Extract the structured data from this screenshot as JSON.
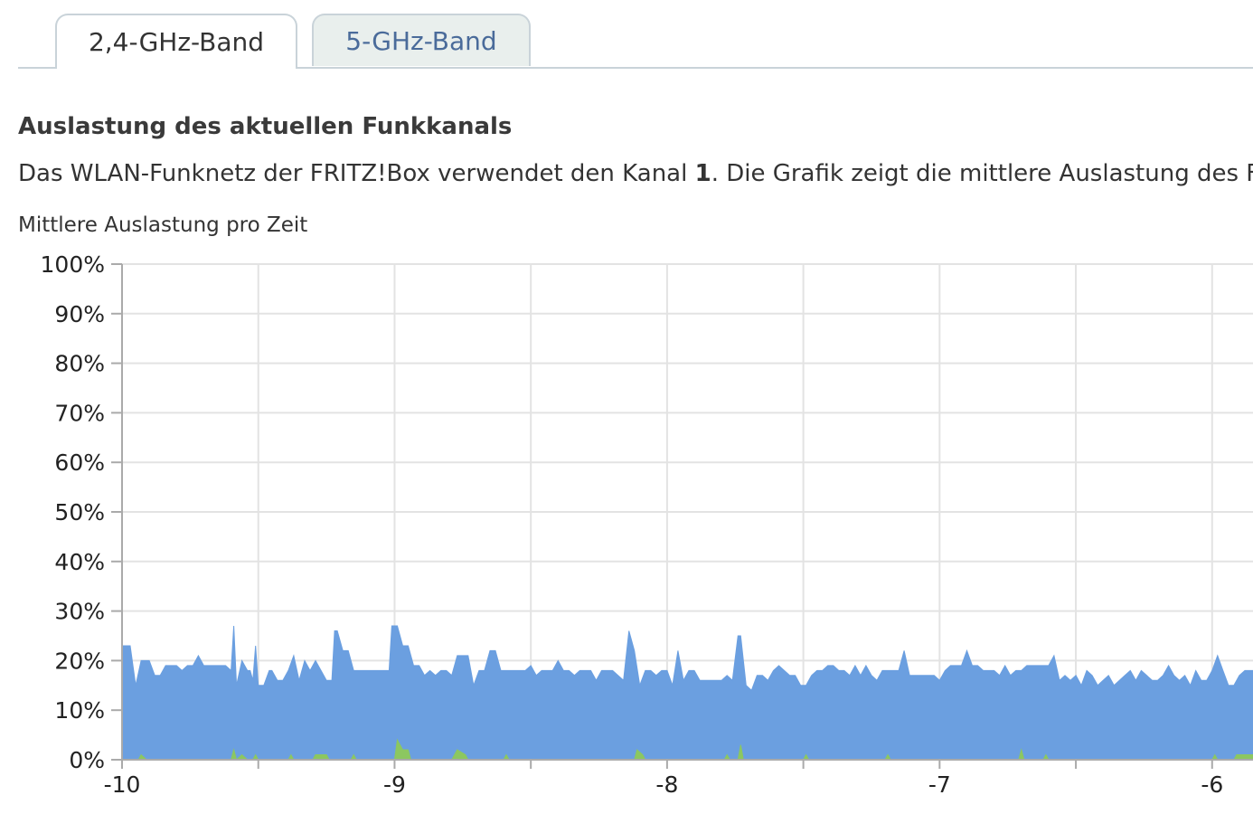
{
  "tabs": [
    {
      "label": "2,4-GHz-Band",
      "active": true
    },
    {
      "label": "5-GHz-Band",
      "active": false
    }
  ],
  "section": {
    "title": "Auslastung des aktuellen Funkkanals",
    "desc_prefix": "Das WLAN-Funknetz der FRITZ!Box verwendet den Kanal ",
    "channel": "1",
    "desc_suffix": ". Die Grafik zeigt die mittlere Auslastung des F"
  },
  "colors": {
    "blue_series": "#6b9fe0",
    "green_series": "#8cc760",
    "grid": "#e3e3e3",
    "axis": "#aaaaaa"
  },
  "chart_data": {
    "type": "area",
    "title": "Mittlere Auslastung pro Zeit",
    "ylim": [
      0,
      100
    ],
    "xlim": [
      -10,
      -5.85
    ],
    "yticks": [
      "0%",
      "10%",
      "20%",
      "30%",
      "40%",
      "50%",
      "60%",
      "70%",
      "80%",
      "90%",
      "100%"
    ],
    "xticks": [
      "-10",
      "-9",
      "-8",
      "-7",
      "-6"
    ],
    "grid": true,
    "series": [
      {
        "color": "#6b9fe0",
        "points": [
          [
            -10,
            23
          ],
          [
            -9.97,
            23
          ],
          [
            -9.95,
            15
          ],
          [
            -9.93,
            20
          ],
          [
            -9.9,
            20
          ],
          [
            -9.88,
            17
          ],
          [
            -9.86,
            17
          ],
          [
            -9.84,
            19
          ],
          [
            -9.8,
            19
          ],
          [
            -9.78,
            18
          ],
          [
            -9.76,
            19
          ],
          [
            -9.74,
            19
          ],
          [
            -9.72,
            21
          ],
          [
            -9.7,
            19
          ],
          [
            -9.68,
            19
          ],
          [
            -9.65,
            19
          ],
          [
            -9.62,
            19
          ],
          [
            -9.6,
            18
          ],
          [
            -9.59,
            27
          ],
          [
            -9.58,
            15
          ],
          [
            -9.56,
            20
          ],
          [
            -9.54,
            18
          ],
          [
            -9.53,
            18
          ],
          [
            -9.52,
            16
          ],
          [
            -9.51,
            23
          ],
          [
            -9.5,
            15
          ],
          [
            -9.48,
            15
          ],
          [
            -9.46,
            18
          ],
          [
            -9.45,
            18
          ],
          [
            -9.43,
            16
          ],
          [
            -9.41,
            16
          ],
          [
            -9.39,
            18
          ],
          [
            -9.37,
            21
          ],
          [
            -9.35,
            16
          ],
          [
            -9.33,
            20
          ],
          [
            -9.31,
            18
          ],
          [
            -9.29,
            20
          ],
          [
            -9.27,
            18
          ],
          [
            -9.25,
            16
          ],
          [
            -9.23,
            16
          ],
          [
            -9.22,
            26
          ],
          [
            -9.21,
            26
          ],
          [
            -9.19,
            22
          ],
          [
            -9.17,
            22
          ],
          [
            -9.15,
            18
          ],
          [
            -9.1,
            18
          ],
          [
            -9.05,
            18
          ],
          [
            -9.02,
            18
          ],
          [
            -9.01,
            27
          ],
          [
            -8.99,
            27
          ],
          [
            -8.97,
            23
          ],
          [
            -8.95,
            23
          ],
          [
            -8.93,
            19
          ],
          [
            -8.91,
            19
          ],
          [
            -8.89,
            17
          ],
          [
            -8.87,
            18
          ],
          [
            -8.85,
            17
          ],
          [
            -8.83,
            18
          ],
          [
            -8.81,
            18
          ],
          [
            -8.79,
            17
          ],
          [
            -8.77,
            21
          ],
          [
            -8.73,
            21
          ],
          [
            -8.71,
            15
          ],
          [
            -8.69,
            18
          ],
          [
            -8.67,
            18
          ],
          [
            -8.65,
            22
          ],
          [
            -8.63,
            22
          ],
          [
            -8.61,
            18
          ],
          [
            -8.55,
            18
          ],
          [
            -8.52,
            18
          ],
          [
            -8.5,
            19
          ],
          [
            -8.48,
            17
          ],
          [
            -8.46,
            18
          ],
          [
            -8.44,
            18
          ],
          [
            -8.42,
            18
          ],
          [
            -8.4,
            20
          ],
          [
            -8.38,
            18
          ],
          [
            -8.36,
            18
          ],
          [
            -8.34,
            17
          ],
          [
            -8.32,
            18
          ],
          [
            -8.3,
            18
          ],
          [
            -8.28,
            18
          ],
          [
            -8.26,
            16
          ],
          [
            -8.24,
            18
          ],
          [
            -8.2,
            18
          ],
          [
            -8.18,
            17
          ],
          [
            -8.16,
            16
          ],
          [
            -8.14,
            26
          ],
          [
            -8.12,
            22
          ],
          [
            -8.1,
            15
          ],
          [
            -8.08,
            18
          ],
          [
            -8.06,
            18
          ],
          [
            -8.04,
            17
          ],
          [
            -8.02,
            18
          ],
          [
            -8.0,
            18
          ],
          [
            -7.98,
            15
          ],
          [
            -7.96,
            22
          ],
          [
            -7.94,
            16
          ],
          [
            -7.92,
            18
          ],
          [
            -7.9,
            18
          ],
          [
            -7.88,
            16
          ],
          [
            -7.86,
            16
          ],
          [
            -7.84,
            16
          ],
          [
            -7.82,
            16
          ],
          [
            -7.8,
            16
          ],
          [
            -7.78,
            17
          ],
          [
            -7.76,
            16
          ],
          [
            -7.74,
            25
          ],
          [
            -7.73,
            25
          ],
          [
            -7.71,
            15
          ],
          [
            -7.69,
            14
          ],
          [
            -7.67,
            17
          ],
          [
            -7.65,
            17
          ],
          [
            -7.63,
            16
          ],
          [
            -7.61,
            18
          ],
          [
            -7.59,
            19
          ],
          [
            -7.57,
            18
          ],
          [
            -7.55,
            17
          ],
          [
            -7.53,
            17
          ],
          [
            -7.51,
            15
          ],
          [
            -7.49,
            15
          ],
          [
            -7.47,
            17
          ],
          [
            -7.45,
            18
          ],
          [
            -7.43,
            18
          ],
          [
            -7.41,
            19
          ],
          [
            -7.39,
            19
          ],
          [
            -7.37,
            18
          ],
          [
            -7.35,
            18
          ],
          [
            -7.33,
            17
          ],
          [
            -7.31,
            19
          ],
          [
            -7.29,
            17
          ],
          [
            -7.27,
            19
          ],
          [
            -7.25,
            17
          ],
          [
            -7.23,
            16
          ],
          [
            -7.21,
            18
          ],
          [
            -7.19,
            18
          ],
          [
            -7.17,
            18
          ],
          [
            -7.15,
            18
          ],
          [
            -7.13,
            22
          ],
          [
            -7.11,
            17
          ],
          [
            -7.09,
            17
          ],
          [
            -7.05,
            17
          ],
          [
            -7.02,
            17
          ],
          [
            -7.0,
            16
          ],
          [
            -6.98,
            18
          ],
          [
            -6.96,
            19
          ],
          [
            -6.94,
            19
          ],
          [
            -6.92,
            19
          ],
          [
            -6.9,
            22
          ],
          [
            -6.88,
            19
          ],
          [
            -6.86,
            19
          ],
          [
            -6.84,
            18
          ],
          [
            -6.82,
            18
          ],
          [
            -6.8,
            18
          ],
          [
            -6.78,
            17
          ],
          [
            -6.76,
            19
          ],
          [
            -6.74,
            17
          ],
          [
            -6.72,
            18
          ],
          [
            -6.7,
            18
          ],
          [
            -6.68,
            19
          ],
          [
            -6.66,
            19
          ],
          [
            -6.64,
            19
          ],
          [
            -6.62,
            19
          ],
          [
            -6.6,
            19
          ],
          [
            -6.58,
            21
          ],
          [
            -6.56,
            16
          ],
          [
            -6.54,
            17
          ],
          [
            -6.52,
            16
          ],
          [
            -6.5,
            17
          ],
          [
            -6.48,
            15
          ],
          [
            -6.46,
            18
          ],
          [
            -6.44,
            17
          ],
          [
            -6.42,
            15
          ],
          [
            -6.4,
            16
          ],
          [
            -6.38,
            17
          ],
          [
            -6.36,
            15
          ],
          [
            -6.34,
            16
          ],
          [
            -6.32,
            17
          ],
          [
            -6.3,
            18
          ],
          [
            -6.28,
            16
          ],
          [
            -6.26,
            18
          ],
          [
            -6.24,
            17
          ],
          [
            -6.22,
            16
          ],
          [
            -6.2,
            16
          ],
          [
            -6.18,
            17
          ],
          [
            -6.16,
            19
          ],
          [
            -6.14,
            17
          ],
          [
            -6.12,
            16
          ],
          [
            -6.1,
            17
          ],
          [
            -6.08,
            15
          ],
          [
            -6.06,
            18
          ],
          [
            -6.04,
            16
          ],
          [
            -6.02,
            16
          ],
          [
            -6.0,
            18
          ],
          [
            -5.98,
            21
          ],
          [
            -5.96,
            18
          ],
          [
            -5.94,
            15
          ],
          [
            -5.92,
            15
          ],
          [
            -5.9,
            17
          ],
          [
            -5.88,
            18
          ],
          [
            -5.85,
            18
          ]
        ]
      },
      {
        "color": "#8cc760",
        "points": [
          [
            -10,
            0
          ],
          [
            -9.94,
            0
          ],
          [
            -9.93,
            1
          ],
          [
            -9.91,
            0
          ],
          [
            -9.6,
            0
          ],
          [
            -9.59,
            2
          ],
          [
            -9.58,
            0
          ],
          [
            -9.56,
            1
          ],
          [
            -9.54,
            0
          ],
          [
            -9.52,
            0
          ],
          [
            -9.51,
            1
          ],
          [
            -9.5,
            0
          ],
          [
            -9.39,
            0
          ],
          [
            -9.38,
            1
          ],
          [
            -9.37,
            0
          ],
          [
            -9.3,
            0
          ],
          [
            -9.29,
            1
          ],
          [
            -9.25,
            1
          ],
          [
            -9.24,
            0
          ],
          [
            -9.16,
            0
          ],
          [
            -9.15,
            1
          ],
          [
            -9.14,
            0
          ],
          [
            -9.0,
            0
          ],
          [
            -8.99,
            4
          ],
          [
            -8.97,
            2
          ],
          [
            -8.95,
            2
          ],
          [
            -8.94,
            0
          ],
          [
            -8.79,
            0
          ],
          [
            -8.77,
            2
          ],
          [
            -8.74,
            1
          ],
          [
            -8.73,
            0
          ],
          [
            -8.6,
            0
          ],
          [
            -8.59,
            1
          ],
          [
            -8.58,
            0
          ],
          [
            -8.12,
            0
          ],
          [
            -8.11,
            2
          ],
          [
            -8.09,
            1
          ],
          [
            -8.08,
            0
          ],
          [
            -7.79,
            0
          ],
          [
            -7.78,
            1
          ],
          [
            -7.77,
            0
          ],
          [
            -7.74,
            0
          ],
          [
            -7.73,
            3
          ],
          [
            -7.72,
            0
          ],
          [
            -7.5,
            0
          ],
          [
            -7.49,
            1
          ],
          [
            -7.48,
            0
          ],
          [
            -7.2,
            0
          ],
          [
            -7.19,
            1
          ],
          [
            -7.18,
            0
          ],
          [
            -6.71,
            0
          ],
          [
            -6.7,
            2
          ],
          [
            -6.69,
            0
          ],
          [
            -6.62,
            0
          ],
          [
            -6.61,
            1
          ],
          [
            -6.6,
            0
          ],
          [
            -6.0,
            0
          ],
          [
            -5.99,
            1
          ],
          [
            -5.98,
            0
          ],
          [
            -5.92,
            0
          ],
          [
            -5.91,
            1
          ],
          [
            -5.85,
            1
          ]
        ]
      }
    ]
  }
}
